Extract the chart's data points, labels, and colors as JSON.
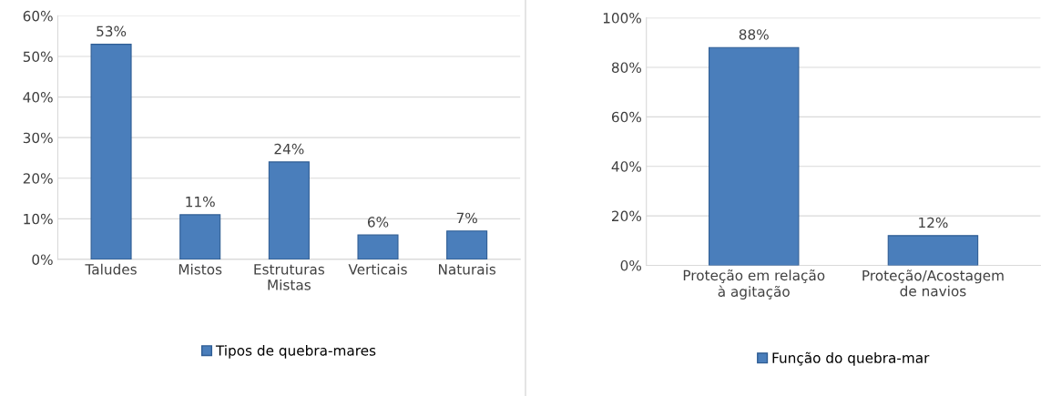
{
  "chart_data": [
    {
      "type": "bar",
      "categories": [
        "Taludes",
        "Mistos",
        "Estruturas\nMistas",
        "Verticais",
        "Naturais"
      ],
      "series": [
        {
          "name": "Tipos de quebra-mares",
          "color": "#4a7ebb",
          "values": [
            53,
            11,
            24,
            6,
            7
          ],
          "value_labels": [
            "53%",
            "11%",
            "24%",
            "6%",
            "7%"
          ]
        }
      ],
      "ylim": [
        0,
        60
      ],
      "yticks": [
        {
          "value": 0,
          "label": "0%"
        },
        {
          "value": 10,
          "label": "10%"
        },
        {
          "value": 20,
          "label": "20%"
        },
        {
          "value": 30,
          "label": "30%"
        },
        {
          "value": 40,
          "label": "40%"
        },
        {
          "value": 50,
          "label": "50%"
        },
        {
          "value": 60,
          "label": "60%"
        }
      ],
      "grid": "y",
      "legend": "bottom"
    },
    {
      "type": "bar",
      "categories": [
        "Proteção em relação\nà agitação",
        "Proteção/Acostagem\nde navios"
      ],
      "series": [
        {
          "name": "Função do quebra-mar",
          "color": "#4a7ebb",
          "values": [
            88,
            12
          ],
          "value_labels": [
            "88%",
            "12%"
          ]
        }
      ],
      "ylim": [
        0,
        100
      ],
      "yticks": [
        {
          "value": 0,
          "label": "0%"
        },
        {
          "value": 20,
          "label": "20%"
        },
        {
          "value": 40,
          "label": "40%"
        },
        {
          "value": 60,
          "label": "60%"
        },
        {
          "value": 80,
          "label": "80%"
        },
        {
          "value": 100,
          "label": "100%"
        }
      ],
      "grid": "y",
      "legend": "bottom"
    }
  ]
}
